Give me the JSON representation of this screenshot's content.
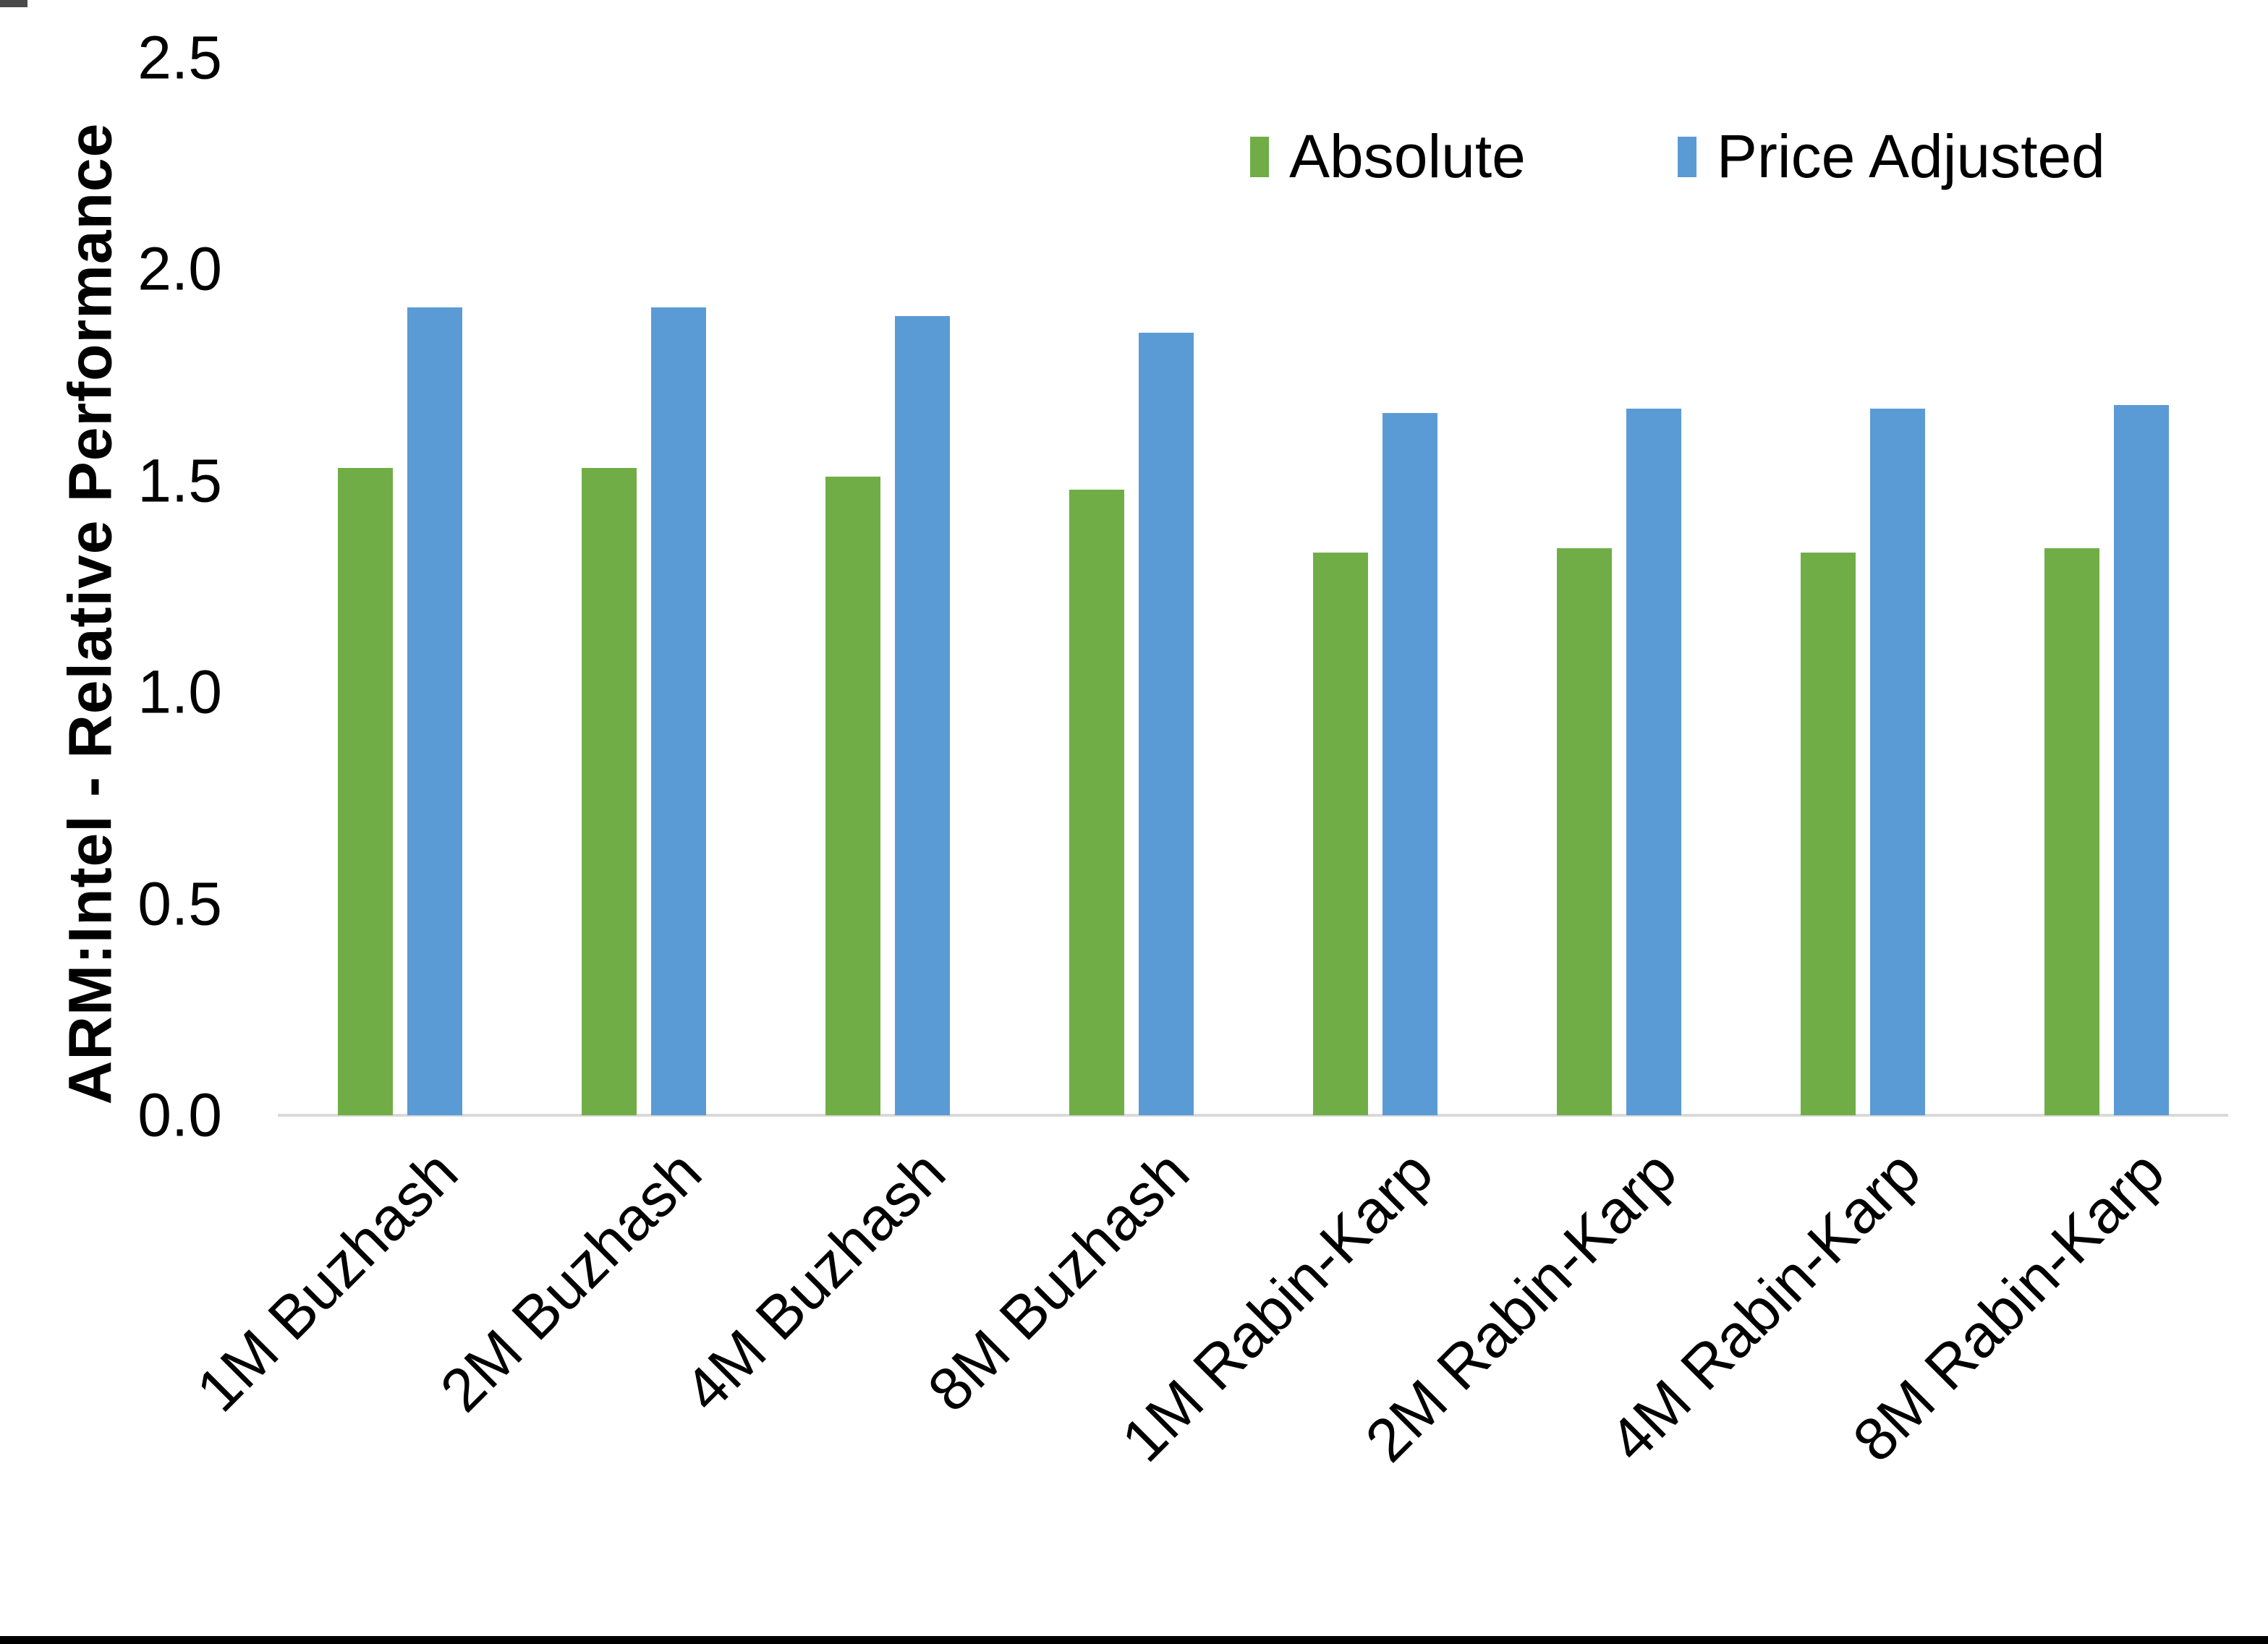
{
  "chart_data": {
    "type": "bar",
    "title": "",
    "xlabel": "",
    "ylabel": "ARM:Intel - Relative Performance",
    "ylim": [
      0.0,
      2.5
    ],
    "ytick_labels": [
      "0.0",
      "0.5",
      "1.0",
      "1.5",
      "2.0",
      "2.5"
    ],
    "ytick_values": [
      0.0,
      0.5,
      1.0,
      1.5,
      2.0,
      2.5
    ],
    "grid": false,
    "legend_position": "top-right-inside",
    "categories": [
      "1M Buzhash",
      "2M Buzhash",
      "4M Buzhash",
      "8M Buzhash",
      "1M Rabin-Karp",
      "2M Rabin-Karp",
      "4M Rabin-Karp",
      "8M Rabin-Karp"
    ],
    "series": [
      {
        "name": "Absolute",
        "color": "#70AD47",
        "values": [
          1.53,
          1.53,
          1.51,
          1.48,
          1.33,
          1.34,
          1.33,
          1.34
        ]
      },
      {
        "name": "Price Adjusted",
        "color": "#5B9BD5",
        "values": [
          1.91,
          1.91,
          1.89,
          1.85,
          1.66,
          1.67,
          1.67,
          1.68
        ]
      }
    ]
  },
  "legend": {
    "absolute_label": "Absolute",
    "price_adjusted_label": "Price Adjusted"
  },
  "axis": {
    "y_title": "ARM:Intel - Relative Performance",
    "baseline_color": "#d9d9d9",
    "text_color": "#000000"
  },
  "frame": {
    "bottom_border_color": "#000000"
  }
}
